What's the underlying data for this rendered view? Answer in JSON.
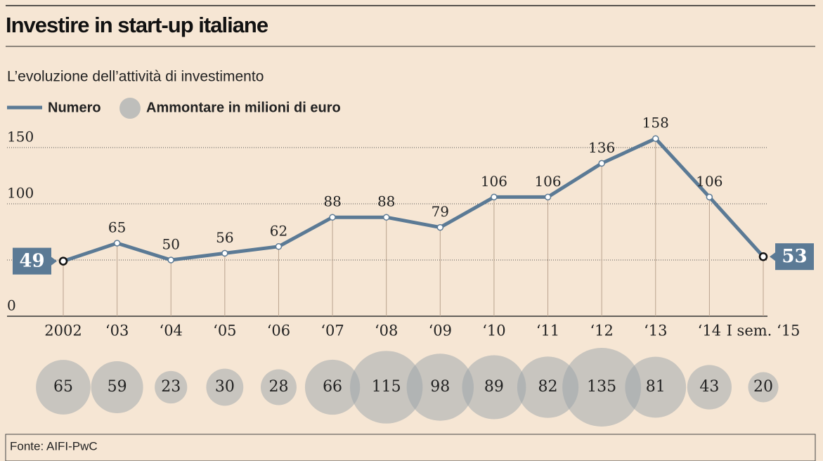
{
  "chart_data": {
    "type": "line",
    "title": "Investire in start-up italiane",
    "subtitle": "L’evoluzione dell’attività di investimento",
    "categories": [
      "2002",
      "‘03",
      "‘04",
      "‘05",
      "‘06",
      "‘07",
      "‘08",
      "‘09",
      "‘10",
      "‘11",
      "‘12",
      "‘13",
      "‘14",
      "I sem. ‘15"
    ],
    "series": [
      {
        "name": "Numero",
        "color": "#5b7a95",
        "values": [
          49,
          65,
          50,
          56,
          62,
          88,
          88,
          79,
          106,
          106,
          136,
          158,
          106,
          53
        ]
      },
      {
        "name": "Ammontare in milioni di euro",
        "color": "#9aa3aa",
        "values": [
          65,
          59,
          23,
          30,
          28,
          66,
          115,
          98,
          89,
          82,
          135,
          81,
          43,
          20
        ]
      }
    ],
    "ylim": [
      0,
      150
    ],
    "yticks": [
      0,
      100,
      150
    ],
    "gridlines": [
      50,
      100,
      150
    ],
    "source": "Fonte: AIFI-PwC"
  }
}
